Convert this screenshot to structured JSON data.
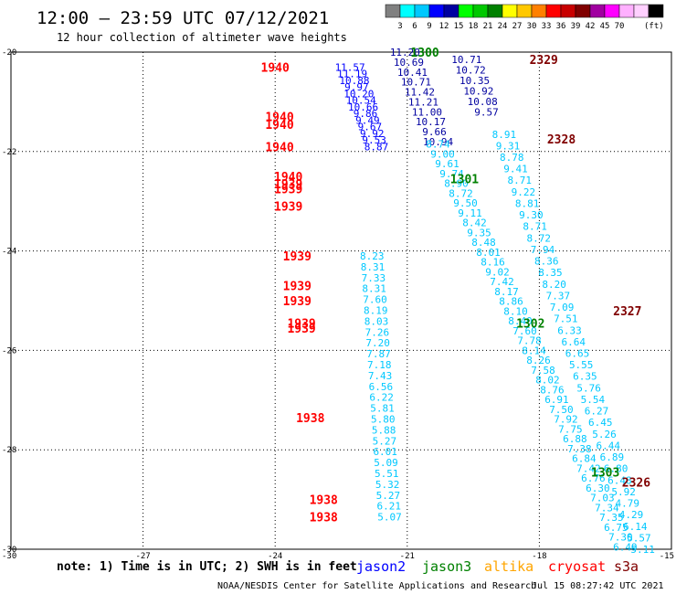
{
  "header": {
    "title": "12:00 – 23:59 UTC 07/12/2021",
    "subtitle": "12 hour collection of altimeter wave heights",
    "unit": "(ft)"
  },
  "scale": {
    "colors": [
      "#808080",
      "#00ffff",
      "#00c8ff",
      "#0000ff",
      "#0000a0",
      "#00ff00",
      "#00c800",
      "#008000",
      "#ffff00",
      "#ffc800",
      "#ff8000",
      "#ff0000",
      "#c80000",
      "#800000",
      "#a000a0",
      "#ff00ff",
      "#ffb0ff",
      "#ffd0ff",
      "#000000"
    ],
    "labels": [
      "3",
      "6",
      "9",
      "12",
      "15",
      "18",
      "21",
      "24",
      "27",
      "30",
      "33",
      "36",
      "39",
      "42",
      "45",
      "70"
    ]
  },
  "chart_data": {
    "type": "scatter",
    "xlim": [
      -30,
      -15
    ],
    "ylim": [
      -30,
      -20
    ],
    "x_ticks": [
      "-30",
      "-27",
      "-24",
      "-21",
      "-18",
      "-15"
    ],
    "y_ticks": [
      "-20",
      "-22",
      "-24",
      "-26",
      "-28",
      "-30"
    ],
    "grid": true,
    "passes": [
      {
        "label": "1940",
        "x": -24.0,
        "y": -20.3,
        "color": "#ff0000"
      },
      {
        "label": "1940",
        "x": -23.9,
        "y": -21.3,
        "color": "#ff0000"
      },
      {
        "label": "1940",
        "x": -23.9,
        "y": -21.45,
        "color": "#ff0000"
      },
      {
        "label": "1940",
        "x": -23.9,
        "y": -21.9,
        "color": "#ff0000"
      },
      {
        "label": "1940",
        "x": -23.7,
        "y": -22.5,
        "color": "#ff0000"
      },
      {
        "label": "1939",
        "x": -23.7,
        "y": -22.65,
        "color": "#ff0000"
      },
      {
        "label": "1939",
        "x": -23.7,
        "y": -22.75,
        "color": "#ff0000"
      },
      {
        "label": "1939",
        "x": -23.7,
        "y": -23.1,
        "color": "#ff0000"
      },
      {
        "label": "1939",
        "x": -23.5,
        "y": -24.1,
        "color": "#ff0000"
      },
      {
        "label": "1939",
        "x": -23.5,
        "y": -24.7,
        "color": "#ff0000"
      },
      {
        "label": "1939",
        "x": -23.5,
        "y": -25.0,
        "color": "#ff0000"
      },
      {
        "label": "1939",
        "x": -23.4,
        "y": -25.45,
        "color": "#ff0000"
      },
      {
        "label": "1939",
        "x": -23.4,
        "y": -25.55,
        "color": "#ff0000"
      },
      {
        "label": "1938",
        "x": -23.2,
        "y": -27.35,
        "color": "#ff0000"
      },
      {
        "label": "1938",
        "x": -22.9,
        "y": -29.0,
        "color": "#ff0000"
      },
      {
        "label": "1938",
        "x": -22.9,
        "y": -29.35,
        "color": "#ff0000"
      },
      {
        "label": "1300",
        "x": -20.6,
        "y": -20.0,
        "color": "#008000"
      },
      {
        "label": "1301",
        "x": -19.7,
        "y": -22.55,
        "color": "#008000"
      },
      {
        "label": "1302",
        "x": -18.2,
        "y": -25.45,
        "color": "#008000"
      },
      {
        "label": "1303",
        "x": -16.5,
        "y": -28.45,
        "color": "#008000"
      },
      {
        "label": "2329",
        "x": -17.9,
        "y": -20.15,
        "color": "#800000"
      },
      {
        "label": "2328",
        "x": -17.5,
        "y": -21.75,
        "color": "#800000"
      },
      {
        "label": "2327",
        "x": -16.0,
        "y": -25.2,
        "color": "#800000"
      },
      {
        "label": "2326",
        "x": -15.8,
        "y": -28.65,
        "color": "#800000"
      }
    ],
    "tracks": [
      {
        "name": "jason2",
        "color": "#0000ff",
        "x0": -22.3,
        "x1": -21.7,
        "y0": -20.3,
        "y1": -21.9,
        "values": [
          "11.57",
          "11.19",
          "10.88",
          "9.97",
          "10.20",
          "10.54",
          "10.66",
          "9.86",
          "9.49",
          "9.67",
          "9.92",
          "9.53",
          "8.87"
        ]
      },
      {
        "name": "jason2",
        "color": "#0000a0",
        "x0": -21.05,
        "x1": -20.3,
        "y0": -20.0,
        "y1": -21.8,
        "values": [
          "11.20",
          "10.69",
          "10.41",
          "10.71",
          "11.42",
          "11.21",
          "11.00",
          "10.17",
          "9.66",
          "10.94"
        ]
      },
      {
        "name": "jason2",
        "color": "#0000a0",
        "x0": -19.65,
        "x1": -19.2,
        "y0": -20.15,
        "y1": -21.2,
        "values": [
          "10.71",
          "10.72",
          "10.35",
          "10.92",
          "10.08",
          "9.57"
        ]
      },
      {
        "name": "cyan-track-a",
        "color": "#00c8ff",
        "x0": -20.3,
        "x1": -16.05,
        "y0": -21.85,
        "y1": -29.95,
        "values": [
          "8.74",
          "9.00",
          "9.61",
          "9.74",
          "8.90",
          "8.72",
          "9.50",
          "9.11",
          "8.42",
          "9.35",
          "8.48",
          "8.01",
          "8.16",
          "9.02",
          "7.42",
          "8.17",
          "8.86",
          "8.10",
          "8.40",
          "7.60",
          "7.78",
          "8.14",
          "8.26",
          "7.58",
          "8.02",
          "8.76",
          "6.91",
          "7.50",
          "7.92",
          "7.75",
          "6.88",
          "7.38",
          "6.84",
          "7.42",
          "6.76",
          "6.30",
          "7.03",
          "7.34",
          "7.35",
          "6.75",
          "7.30",
          "6.49"
        ]
      },
      {
        "name": "cyan-track-b",
        "color": "#00c8ff",
        "x0": -18.8,
        "x1": -15.65,
        "y0": -21.65,
        "y1": -30.0,
        "values": [
          "8.91",
          "9.31",
          "8.78",
          "9.41",
          "8.71",
          "9.22",
          "8.81",
          "9.30",
          "8.71",
          "8.72",
          "7.94",
          "8.36",
          "8.35",
          "8.20",
          "7.37",
          "7.09",
          "7.51",
          "6.33",
          "6.64",
          "6.65",
          "5.55",
          "6.35",
          "5.76",
          "5.54",
          "6.27",
          "6.45",
          "5.26",
          "6.44",
          "6.89",
          "6.80",
          "6.48",
          "5.92",
          "4.79",
          "4.29",
          "6.14",
          "5.57",
          "5.11"
        ]
      },
      {
        "name": "cyan-track-c",
        "color": "#00c8ff",
        "x0": -21.8,
        "x1": -21.4,
        "y0": -24.1,
        "y1": -29.35,
        "values": [
          "8.23",
          "8.31",
          "7.33",
          "8.31",
          "7.60",
          "8.19",
          "8.03",
          "7.26",
          "7.20",
          "7.87",
          "7.18",
          "7.43",
          "6.56",
          "6.22",
          "5.81",
          "5.80",
          "5.88",
          "5.27",
          "6.01",
          "5.09",
          "5.51",
          "5.32",
          "5.27",
          "6.21",
          "5.07"
        ]
      }
    ]
  },
  "legend": {
    "note": "note: 1) Time is in UTC; 2) SWH is in feet",
    "items": [
      {
        "name": "jason2",
        "color": "#0000ff"
      },
      {
        "name": "jason3",
        "color": "#008000"
      },
      {
        "name": "altika",
        "color": "#ffa500"
      },
      {
        "name": "cryosat",
        "color": "#ff0000"
      },
      {
        "name": "s3a",
        "color": "#800000"
      }
    ]
  },
  "footer": {
    "credit": "NOAA/NESDIS Center for Satellite Applications and Research",
    "timestamp": "Jul 15 08:27:42 UTC 2021"
  }
}
